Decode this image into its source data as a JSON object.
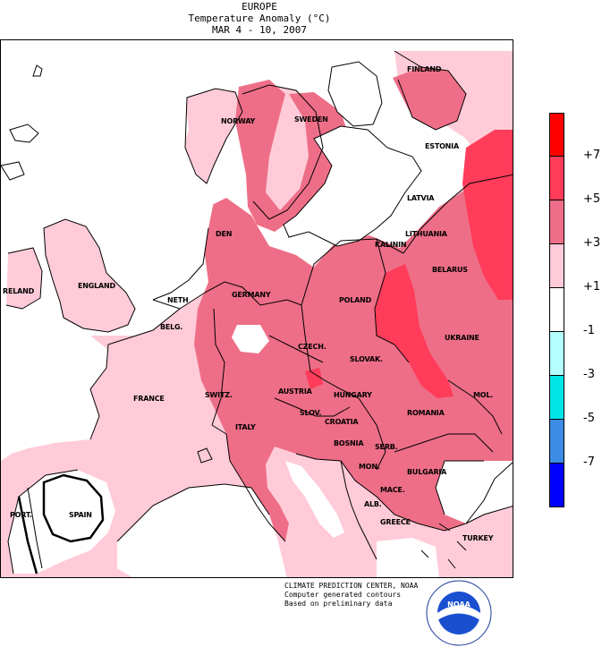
{
  "header": {
    "title": "EUROPE",
    "subtitle": "Temperature Anomaly (°C)",
    "dates": "MAR 4 - 10, 2007"
  },
  "map": {
    "country_labels": [
      {
        "id": "finland",
        "text": "FINLAND"
      },
      {
        "id": "norway",
        "text": "NORWAY"
      },
      {
        "id": "sweden",
        "text": "SWEDEN"
      },
      {
        "id": "estonia",
        "text": "ESTONIA"
      },
      {
        "id": "latvia",
        "text": "LATVIA"
      },
      {
        "id": "den",
        "text": "DEN"
      },
      {
        "id": "kalinin",
        "text": "KALININ"
      },
      {
        "id": "lithuania",
        "text": "LITHUANIA"
      },
      {
        "id": "belarus",
        "text": "BELARUS"
      },
      {
        "id": "ireland",
        "text": "RELAND"
      },
      {
        "id": "england",
        "text": "ENGLAND"
      },
      {
        "id": "neth",
        "text": "NETH"
      },
      {
        "id": "germany",
        "text": "GERMANY"
      },
      {
        "id": "poland",
        "text": "POLAND"
      },
      {
        "id": "belg",
        "text": "BELG."
      },
      {
        "id": "czech",
        "text": "CZECH."
      },
      {
        "id": "ukraine",
        "text": "UKRAINE"
      },
      {
        "id": "slovak",
        "text": "SLOVAK."
      },
      {
        "id": "france",
        "text": "FRANCE"
      },
      {
        "id": "switz",
        "text": "SWITZ."
      },
      {
        "id": "austria",
        "text": "AUSTRIA"
      },
      {
        "id": "hungary",
        "text": "HUNGARY"
      },
      {
        "id": "mol",
        "text": "MOL."
      },
      {
        "id": "romania",
        "text": "ROMANIA"
      },
      {
        "id": "slov",
        "text": "SLOV."
      },
      {
        "id": "croatia",
        "text": "CROATIA"
      },
      {
        "id": "italy",
        "text": "ITALY"
      },
      {
        "id": "bosnia",
        "text": "BOSNIA"
      },
      {
        "id": "serb",
        "text": "SERB."
      },
      {
        "id": "mon",
        "text": "MON."
      },
      {
        "id": "bulgaria",
        "text": "BULGARIA"
      },
      {
        "id": "mace",
        "text": "MACE."
      },
      {
        "id": "port",
        "text": "PORT."
      },
      {
        "id": "spain",
        "text": "SPAIN"
      },
      {
        "id": "alb",
        "text": "ALB."
      },
      {
        "id": "greece",
        "text": "GREECE"
      },
      {
        "id": "turkey",
        "text": "TURKEY"
      }
    ]
  },
  "legend": {
    "ticks": [
      "+7",
      "+5",
      "+3",
      "+1",
      "-1",
      "-3",
      "-5",
      "-7"
    ],
    "colors": [
      "#ff0000",
      "#ff3c5a",
      "#ee6e87",
      "#ffcbd9",
      "#ffffff",
      "#b4ffff",
      "#00e6e6",
      "#3c8ce6",
      "#0000ff"
    ]
  },
  "colors": {
    "plus1_3": "#ffcbd9",
    "plus3_5": "#ee6e87",
    "plus5_7": "#ff3c5a",
    "neutral": "#ffffff"
  },
  "credit": {
    "line1": "CLIMATE PREDICTION CENTER, NOAA",
    "line2": "Computer generated contours",
    "line3": "Based on preliminary data"
  },
  "logo": {
    "text": "NOAA"
  }
}
